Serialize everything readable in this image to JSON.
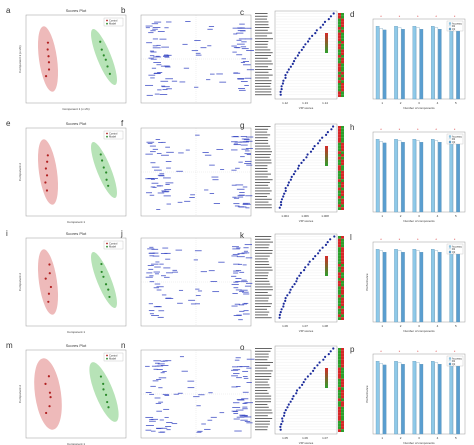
{
  "figure": {
    "panel_letters": [
      "a",
      "b",
      "c",
      "d",
      "e",
      "f",
      "g",
      "h",
      "i",
      "j",
      "k",
      "l",
      "m",
      "n",
      "o",
      "p"
    ]
  },
  "rows": [
    {
      "score_plot_title": "Scores Plot",
      "score_xlabel": "Component 1 (x.x%)",
      "score_ylabel": "Component 2 (x.x%)",
      "legend": [
        "Control",
        "Model"
      ],
      "vip_xlabel": "VIP scores",
      "vip_ticks": [
        "1.12",
        "1.13",
        "1.14"
      ],
      "bar_xlabel": "Number of components",
      "bar_ylabel": "",
      "bar_legend": [
        "Accuracy",
        "R2",
        "Q2"
      ],
      "bar_ticks": [
        "1",
        "2",
        "3",
        "4",
        "5"
      ]
    },
    {
      "score_plot_title": "Scores Plot",
      "score_xlabel": "Component 1",
      "score_ylabel": "Component 2",
      "legend": [
        "Control",
        "Model"
      ],
      "vip_xlabel": "VIP scores",
      "vip_ticks": [
        "1.004",
        "1.006",
        "1.008"
      ],
      "bar_xlabel": "Number of components",
      "bar_ylabel": "",
      "bar_legend": [
        "Accuracy",
        "R2",
        "Q2"
      ],
      "bar_ticks": [
        "1",
        "2",
        "3",
        "4",
        "5"
      ]
    },
    {
      "score_plot_title": "Scores Plot",
      "score_xlabel": "Component 1",
      "score_ylabel": "Component 2",
      "legend": [
        "Control",
        "Model"
      ],
      "vip_xlabel": "VIP scores",
      "vip_ticks": [
        "1.06",
        "1.07",
        "1.08"
      ],
      "bar_xlabel": "Number of components",
      "bar_ylabel": "Performance",
      "bar_legend": [
        "Accuracy",
        "R2",
        "Q2"
      ],
      "bar_ticks": [
        "1",
        "2",
        "3",
        "4",
        "5"
      ]
    },
    {
      "score_plot_title": "Scores Plot",
      "score_xlabel": "Component 1",
      "score_ylabel": "Component 2",
      "legend": [
        "Control",
        "Model"
      ],
      "vip_xlabel": "VIP scores",
      "vip_ticks": [
        "1.05",
        "1.06",
        "1.07"
      ],
      "bar_xlabel": "Number of components",
      "bar_ylabel": "Performance",
      "bar_legend": [
        "Accuracy",
        "R2",
        "Q2"
      ],
      "bar_ticks": [
        "1",
        "2",
        "3",
        "4",
        "5"
      ]
    }
  ],
  "colors": {
    "group1": "#e8a3a3",
    "group2": "#9fd99f",
    "points1": "#b02020",
    "points2": "#2a8a2a",
    "loadings": "#3040c0",
    "vip_dots": "#1a2a9a",
    "bar_accuracy": "#8ec9e8",
    "bar_r2": "#ffffff",
    "bar_q2": "#5a9ed0",
    "heat_high": "#d62728",
    "heat_low": "#2ca02c"
  },
  "chart_data": [
    {
      "type": "bar",
      "panel": "d",
      "categories": [
        "1",
        "2",
        "3",
        "4",
        "5"
      ],
      "series": [
        {
          "name": "Accuracy",
          "values": [
            1.0,
            1.0,
            1.0,
            1.0,
            1.0
          ]
        },
        {
          "name": "R2",
          "values": [
            0.97,
            0.98,
            0.98,
            0.98,
            0.98
          ]
        },
        {
          "name": "Q2",
          "values": [
            0.95,
            0.96,
            0.96,
            0.96,
            0.96
          ]
        }
      ],
      "ylim": [
        0,
        1.1
      ]
    },
    {
      "type": "bar",
      "panel": "h",
      "categories": [
        "1",
        "2",
        "3",
        "4",
        "5"
      ],
      "series": [
        {
          "name": "Accuracy",
          "values": [
            1.0,
            1.0,
            1.0,
            1.0,
            1.0
          ]
        },
        {
          "name": "R2",
          "values": [
            0.97,
            0.98,
            0.98,
            0.98,
            0.98
          ]
        },
        {
          "name": "Q2",
          "values": [
            0.95,
            0.96,
            0.96,
            0.96,
            0.96
          ]
        }
      ],
      "ylim": [
        0,
        1.1
      ]
    },
    {
      "type": "bar",
      "panel": "l",
      "categories": [
        "1",
        "2",
        "3",
        "4",
        "5"
      ],
      "series": [
        {
          "name": "Accuracy",
          "values": [
            1.0,
            1.0,
            1.0,
            1.0,
            1.0
          ]
        },
        {
          "name": "R2",
          "values": [
            0.98,
            0.98,
            0.98,
            0.98,
            0.98
          ]
        },
        {
          "name": "Q2",
          "values": [
            0.96,
            0.96,
            0.96,
            0.96,
            0.96
          ]
        }
      ],
      "ylim": [
        0,
        1.1
      ]
    },
    {
      "type": "bar",
      "panel": "p",
      "categories": [
        "1",
        "2",
        "3",
        "4",
        "5"
      ],
      "series": [
        {
          "name": "Accuracy",
          "values": [
            1.0,
            1.0,
            1.0,
            1.0,
            1.0
          ]
        },
        {
          "name": "R2",
          "values": [
            0.97,
            0.98,
            0.98,
            0.98,
            0.98
          ]
        },
        {
          "name": "Q2",
          "values": [
            0.95,
            0.96,
            0.96,
            0.96,
            0.96
          ]
        }
      ],
      "ylim": [
        0,
        1.1
      ]
    }
  ]
}
